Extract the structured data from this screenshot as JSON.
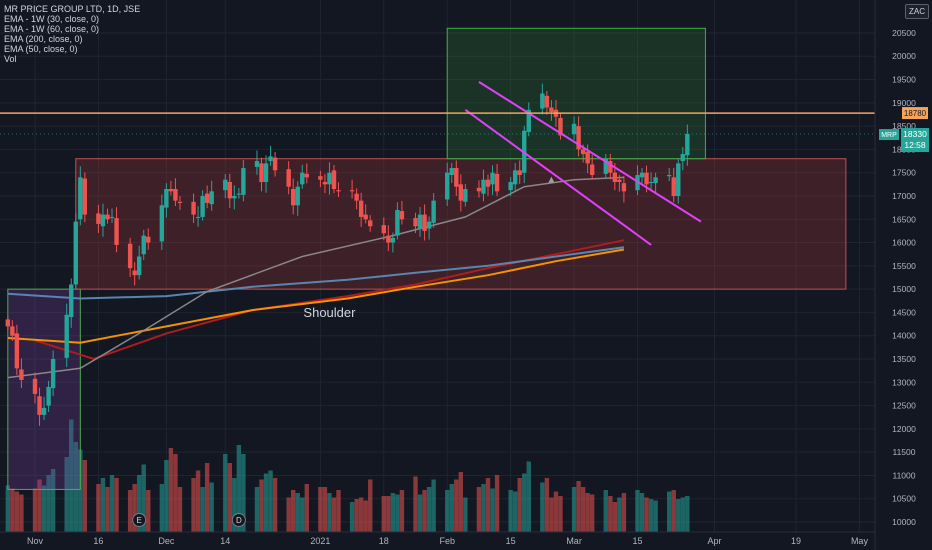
{
  "legend": {
    "title": "MR PRICE GROUP LTD, 1D, JSE",
    "ind1": "EMA - 1W (30, close, 0)",
    "ind2": "EMA - 1W (60, close, 0)",
    "ind3": "EMA (200, close, 0)",
    "ind4": "EMA (50, close, 0)",
    "ind5": "Vol"
  },
  "currency": "ZAC",
  "colors": {
    "background": "#131722",
    "up": "#26a69a",
    "down": "#ef5350",
    "resistance": "#f7a35c",
    "channel": "#e040fb",
    "ema_pink": "#b71c1c",
    "ema_orange": "#ff9800",
    "ema_blue": "#5b8bb5",
    "ema_gray": "#8d8d8d"
  },
  "chart_data": {
    "type": "candlestick",
    "symbol": "MRP",
    "ylim": [
      9700,
      20950
    ],
    "y_ticks": [
      10000,
      10500,
      11000,
      11500,
      12000,
      12500,
      13000,
      13500,
      14000,
      14500,
      15000,
      15500,
      16000,
      16500,
      17000,
      17500,
      18000,
      18500,
      19000,
      19500,
      20000,
      20500
    ],
    "x_ticks": [
      {
        "label": "Nov",
        "date": "2020-11-02"
      },
      {
        "label": "16",
        "date": "2020-11-16"
      },
      {
        "label": "Dec",
        "date": "2020-12-01"
      },
      {
        "label": "14",
        "date": "2020-12-14"
      },
      {
        "label": "2021",
        "date": "2021-01-04"
      },
      {
        "label": "18",
        "date": "2021-01-18"
      },
      {
        "label": "Feb",
        "date": "2021-02-01"
      },
      {
        "label": "15",
        "date": "2021-02-15"
      },
      {
        "label": "Mar",
        "date": "2021-03-01"
      },
      {
        "label": "15",
        "date": "2021-03-15"
      },
      {
        "label": "Apr",
        "date": "2021-04-01"
      },
      {
        "label": "19",
        "date": "2021-04-19"
      },
      {
        "label": "May",
        "date": "2021-05-03"
      }
    ],
    "last_price_label": "18330",
    "last_price_value": 18330,
    "countdown": "12:58",
    "resistance_level": 18780,
    "resistance_label": "18780",
    "annotation": "Shoulder",
    "event_markers": [
      "E",
      "D"
    ],
    "zones": [
      {
        "from": "2020-10-27",
        "to": "2020-11-12",
        "low": 10700,
        "high": 15000,
        "color": "#7b3fa0"
      },
      {
        "from": "2020-11-11",
        "to": "2021-04-30",
        "low": 15000,
        "high": 17800,
        "color": "#b03a3a"
      },
      {
        "from": "2021-02-01",
        "to": "2021-03-30",
        "low": 17800,
        "high": 20600,
        "color": "#2e7d32"
      }
    ],
    "channel_lines": [
      {
        "from": [
          "2021-02-08",
          19450
        ],
        "to": [
          "2021-03-29",
          16450
        ]
      },
      {
        "from": [
          "2021-02-05",
          18850
        ],
        "to": [
          "2021-03-18",
          15950
        ]
      }
    ],
    "closes": [
      14200,
      14000,
      13300,
      13050,
      12750,
      12300,
      12450,
      12900,
      13500,
      14450,
      15100,
      16450,
      17400,
      16600,
      16400,
      16600,
      16500,
      16550,
      15950,
      15450,
      15300,
      15700,
      16150,
      16000,
      16800,
      17150,
      17100,
      16900,
      16850,
      16600,
      16550,
      17000,
      16850,
      17100,
      17350,
      16950,
      17000,
      17050,
      17600,
      17750,
      17300,
      17700,
      17850,
      17550,
      17200,
      16800,
      17200,
      17500,
      17400,
      17350,
      17250,
      17500,
      17150,
      17100,
      17100,
      16900,
      16550,
      16500,
      16350,
      16200,
      16000,
      16100,
      16700,
      16500,
      16350,
      16600,
      16250,
      16450,
      16900,
      17500,
      17600,
      17200,
      16900,
      17150,
      17100,
      17350,
      17200,
      17500,
      17100,
      17300,
      17550,
      17450,
      18400,
      18850,
      19200,
      18900,
      18800,
      18700,
      18300,
      18550,
      18000,
      17900,
      17700,
      17450,
      17800,
      17500,
      17300,
      17300,
      17100,
      17450,
      17500,
      17250,
      17300,
      17400,
      17450,
      17000,
      17700,
      17900,
      18330
    ],
    "volumes": [
      310,
      290,
      270,
      250,
      290,
      350,
      310,
      380,
      420,
      500,
      750,
      600,
      550,
      480,
      320,
      360,
      300,
      380,
      360,
      280,
      320,
      380,
      450,
      280,
      320,
      480,
      560,
      520,
      300,
      360,
      410,
      300,
      460,
      330,
      520,
      460,
      360,
      580,
      520,
      300,
      350,
      390,
      410,
      360,
      230,
      280,
      260,
      230,
      320,
      300,
      300,
      260,
      230,
      280,
      200,
      220,
      230,
      210,
      350,
      240,
      240,
      260,
      250,
      280,
      370,
      250,
      280,
      300,
      350,
      280,
      320,
      350,
      400,
      230,
      300,
      320,
      360,
      290,
      380,
      280,
      270,
      360,
      390,
      470,
      330,
      360,
      230,
      270,
      240,
      300,
      340,
      300,
      260,
      250,
      280,
      240,
      200,
      230,
      260,
      280,
      260,
      230,
      220,
      210,
      270,
      280,
      220,
      230,
      240
    ],
    "volume_scale_max": 900,
    "ema_series": [
      {
        "name": "EMA - 1W (30, close, 0)",
        "color": "#b71c1c",
        "points": [
          [
            "2020-11-02",
            13900
          ],
          [
            "2020-11-15",
            13500
          ],
          [
            "2020-12-01",
            14050
          ],
          [
            "2020-12-20",
            14550
          ],
          [
            "2021-01-10",
            14850
          ],
          [
            "2021-01-25",
            15100
          ],
          [
            "2021-02-10",
            15450
          ],
          [
            "2021-02-25",
            15750
          ],
          [
            "2021-03-12",
            16050
          ]
        ]
      },
      {
        "name": "EMA - 1W (60, close, 0)",
        "color": "#ff9800",
        "points": [
          [
            "2020-10-27",
            13950
          ],
          [
            "2020-11-12",
            13850
          ],
          [
            "2020-12-01",
            14200
          ],
          [
            "2020-12-20",
            14550
          ],
          [
            "2021-01-10",
            14800
          ],
          [
            "2021-01-25",
            15050
          ],
          [
            "2021-02-10",
            15300
          ],
          [
            "2021-02-25",
            15600
          ],
          [
            "2021-03-12",
            15850
          ]
        ]
      },
      {
        "name": "EMA (200, close, 0)",
        "color": "#5b8bb5",
        "points": [
          [
            "2020-10-27",
            14900
          ],
          [
            "2020-11-12",
            14800
          ],
          [
            "2020-12-01",
            14850
          ],
          [
            "2020-12-20",
            15050
          ],
          [
            "2021-01-10",
            15200
          ],
          [
            "2021-01-25",
            15350
          ],
          [
            "2021-02-10",
            15500
          ],
          [
            "2021-02-25",
            15700
          ],
          [
            "2021-03-12",
            15900
          ]
        ]
      },
      {
        "name": "EMA (50, close, 0)",
        "color": "#8d8d8d",
        "points": [
          [
            "2020-10-27",
            13100
          ],
          [
            "2020-11-12",
            13300
          ],
          [
            "2020-11-25",
            14050
          ],
          [
            "2020-12-10",
            14950
          ],
          [
            "2020-12-31",
            15700
          ],
          [
            "2021-01-20",
            16150
          ],
          [
            "2021-02-05",
            16550
          ],
          [
            "2021-02-18",
            17200
          ],
          [
            "2021-03-01",
            17350
          ],
          [
            "2021-03-12",
            17400
          ]
        ]
      }
    ]
  }
}
